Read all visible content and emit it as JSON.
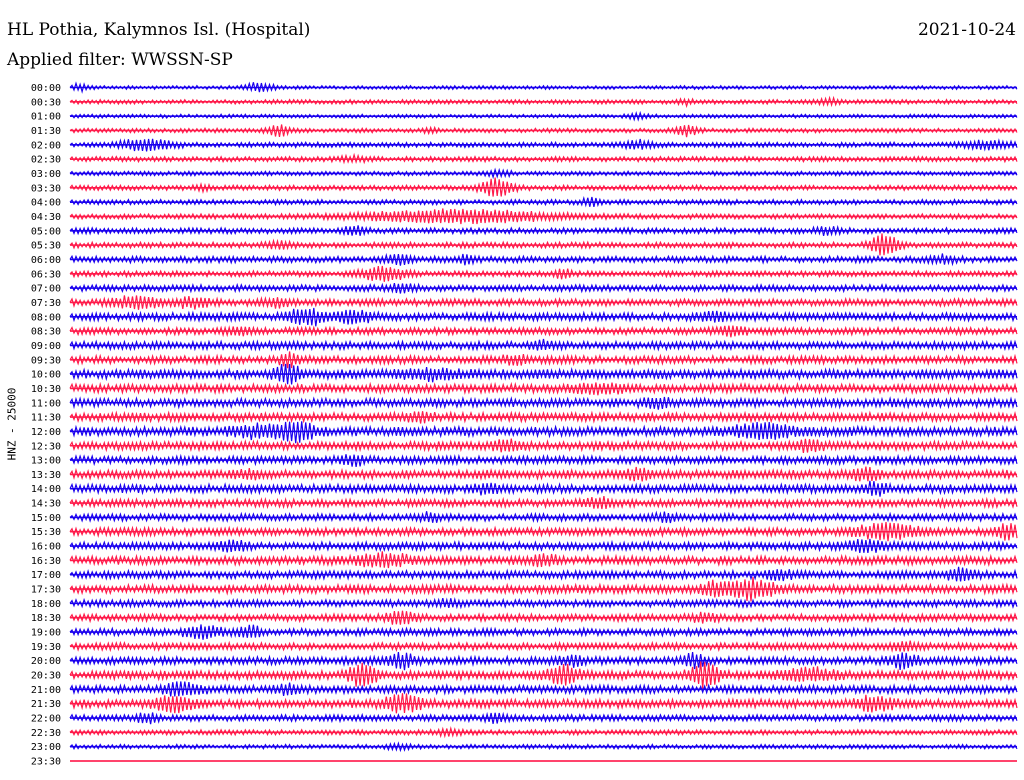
{
  "header": {
    "station": "HL Pothia, Kalymnos Isl. (Hospital)",
    "date": "2021-10-24",
    "filter": "Applied filter: WWSSN-SP"
  },
  "side_label": "HNZ - 25000",
  "colors": {
    "trace_even": "#1a00ee",
    "trace_odd": "#ff1a4a"
  },
  "chart_data": {
    "type": "line",
    "title": "HL Pothia, Kalymnos Isl. (Hospital)",
    "ylabel": "HNZ - 25000",
    "xlabel": "",
    "grid": false,
    "rows": [
      {
        "label": "00:00",
        "noise": 0.5,
        "events": [
          [
            0.2,
            1.3,
            0.01
          ],
          [
            0.01,
            0.8,
            0.01
          ]
        ]
      },
      {
        "label": "00:30",
        "noise": 0.6,
        "events": [
          [
            0.8,
            0.9,
            0.008
          ],
          [
            0.65,
            0.7,
            0.006
          ]
        ]
      },
      {
        "label": "01:00",
        "noise": 0.5,
        "events": [
          [
            0.6,
            0.7,
            0.008
          ]
        ]
      },
      {
        "label": "01:30",
        "noise": 0.6,
        "events": [
          [
            0.22,
            1.6,
            0.008
          ],
          [
            0.65,
            1.5,
            0.009
          ],
          [
            0.38,
            0.6,
            0.006
          ]
        ]
      },
      {
        "label": "02:00",
        "noise": 0.7,
        "events": [
          [
            0.08,
            1.4,
            0.02
          ],
          [
            0.6,
            1.2,
            0.01
          ],
          [
            0.97,
            1.0,
            0.02
          ]
        ]
      },
      {
        "label": "02:30",
        "noise": 0.7,
        "events": [
          [
            0.3,
            0.6,
            0.01
          ]
        ]
      },
      {
        "label": "03:00",
        "noise": 0.6,
        "events": [
          [
            0.45,
            0.7,
            0.01
          ]
        ]
      },
      {
        "label": "03:30",
        "noise": 0.7,
        "events": [
          [
            0.45,
            2.5,
            0.012
          ],
          [
            0.14,
            0.8,
            0.006
          ]
        ]
      },
      {
        "label": "04:00",
        "noise": 0.7,
        "events": [
          [
            0.55,
            1.0,
            0.008
          ]
        ]
      },
      {
        "label": "04:30",
        "noise": 0.7,
        "events": [
          [
            0.41,
            1.8,
            0.07
          ]
        ]
      },
      {
        "label": "05:00",
        "noise": 0.8,
        "events": [
          [
            0.3,
            0.9,
            0.01
          ],
          [
            0.8,
            0.8,
            0.01
          ]
        ]
      },
      {
        "label": "05:30",
        "noise": 0.8,
        "events": [
          [
            0.86,
            3.0,
            0.01
          ],
          [
            0.22,
            0.8,
            0.01
          ]
        ]
      },
      {
        "label": "06:00",
        "noise": 0.9,
        "events": [
          [
            0.35,
            1.3,
            0.01
          ],
          [
            0.42,
            1.5,
            0.006
          ],
          [
            0.92,
            0.8,
            0.01
          ]
        ]
      },
      {
        "label": "06:30",
        "noise": 0.8,
        "events": [
          [
            0.33,
            2.0,
            0.016
          ],
          [
            0.52,
            1.2,
            0.006
          ]
        ]
      },
      {
        "label": "07:00",
        "noise": 0.9,
        "events": [
          [
            0.35,
            0.9,
            0.01
          ]
        ]
      },
      {
        "label": "07:30",
        "noise": 1.0,
        "events": [
          [
            0.07,
            1.5,
            0.016
          ],
          [
            0.13,
            1.4,
            0.012
          ],
          [
            0.22,
            1.1,
            0.01
          ]
        ]
      },
      {
        "label": "08:00",
        "noise": 1.1,
        "events": [
          [
            0.25,
            2.2,
            0.014
          ],
          [
            0.3,
            1.8,
            0.012
          ],
          [
            0.68,
            1.0,
            0.01
          ]
        ]
      },
      {
        "label": "08:30",
        "noise": 1.0,
        "events": [
          [
            0.7,
            1.0,
            0.01
          ],
          [
            0.18,
            0.9,
            0.01
          ]
        ]
      },
      {
        "label": "09:00",
        "noise": 1.1,
        "events": [
          [
            0.5,
            0.8,
            0.01
          ]
        ]
      },
      {
        "label": "09:30",
        "noise": 1.1,
        "events": [
          [
            0.23,
            1.8,
            0.006
          ],
          [
            0.47,
            0.9,
            0.01
          ]
        ]
      },
      {
        "label": "10:00",
        "noise": 1.3,
        "events": [
          [
            0.23,
            2.3,
            0.01
          ],
          [
            0.38,
            1.2,
            0.02
          ]
        ]
      },
      {
        "label": "10:30",
        "noise": 1.2,
        "events": [
          [
            0.56,
            0.9,
            0.02
          ]
        ]
      },
      {
        "label": "11:00",
        "noise": 1.2,
        "events": [
          [
            0.62,
            1.2,
            0.01
          ]
        ]
      },
      {
        "label": "11:30",
        "noise": 1.2,
        "events": [
          [
            0.37,
            1.0,
            0.01
          ]
        ]
      },
      {
        "label": "12:00",
        "noise": 1.3,
        "events": [
          [
            0.24,
            2.5,
            0.012
          ],
          [
            0.73,
            2.0,
            0.02
          ],
          [
            0.2,
            1.4,
            0.02
          ]
        ]
      },
      {
        "label": "12:30",
        "noise": 1.2,
        "events": [
          [
            0.78,
            1.3,
            0.01
          ],
          [
            0.46,
            1.2,
            0.01
          ]
        ]
      },
      {
        "label": "13:00",
        "noise": 1.1,
        "events": [
          [
            0.3,
            0.9,
            0.01
          ]
        ]
      },
      {
        "label": "13:30",
        "noise": 1.2,
        "events": [
          [
            0.6,
            1.4,
            0.01
          ],
          [
            0.84,
            1.5,
            0.01
          ],
          [
            0.19,
            1.1,
            0.008
          ]
        ]
      },
      {
        "label": "14:00",
        "noise": 1.2,
        "events": [
          [
            0.85,
            1.6,
            0.008
          ],
          [
            0.44,
            1.0,
            0.01
          ]
        ]
      },
      {
        "label": "14:30",
        "noise": 1.1,
        "events": [
          [
            0.56,
            1.2,
            0.01
          ]
        ]
      },
      {
        "label": "15:00",
        "noise": 1.0,
        "events": [
          [
            0.38,
            1.0,
            0.008
          ],
          [
            0.63,
            1.0,
            0.008
          ]
        ]
      },
      {
        "label": "15:30",
        "noise": 1.1,
        "events": [
          [
            0.86,
            2.2,
            0.022
          ],
          [
            0.99,
            1.8,
            0.01
          ]
        ]
      },
      {
        "label": "16:00",
        "noise": 1.1,
        "events": [
          [
            0.17,
            1.2,
            0.01
          ],
          [
            0.84,
            1.3,
            0.014
          ]
        ]
      },
      {
        "label": "16:30",
        "noise": 1.2,
        "events": [
          [
            0.33,
            1.6,
            0.02
          ],
          [
            0.5,
            1.0,
            0.012
          ]
        ]
      },
      {
        "label": "17:00",
        "noise": 1.1,
        "events": [
          [
            0.94,
            1.4,
            0.01
          ],
          [
            0.75,
            1.0,
            0.01
          ]
        ]
      },
      {
        "label": "17:30",
        "noise": 1.2,
        "events": [
          [
            0.72,
            2.6,
            0.016
          ],
          [
            0.68,
            1.6,
            0.01
          ]
        ]
      },
      {
        "label": "18:00",
        "noise": 1.0,
        "events": [
          [
            0.4,
            0.8,
            0.01
          ]
        ]
      },
      {
        "label": "18:30",
        "noise": 1.0,
        "events": [
          [
            0.35,
            1.6,
            0.01
          ],
          [
            0.67,
            1.0,
            0.01
          ]
        ]
      },
      {
        "label": "19:00",
        "noise": 1.0,
        "events": [
          [
            0.14,
            1.5,
            0.014
          ],
          [
            0.19,
            1.6,
            0.008
          ]
        ]
      },
      {
        "label": "19:30",
        "noise": 1.0,
        "events": [
          [
            0.88,
            1.0,
            0.01
          ]
        ]
      },
      {
        "label": "20:00",
        "noise": 1.1,
        "events": [
          [
            0.35,
            2.0,
            0.01
          ],
          [
            0.66,
            1.8,
            0.008
          ],
          [
            0.88,
            1.8,
            0.01
          ],
          [
            0.53,
            1.4,
            0.008
          ]
        ]
      },
      {
        "label": "20:30",
        "noise": 1.2,
        "events": [
          [
            0.31,
            3.2,
            0.01
          ],
          [
            0.52,
            2.6,
            0.012
          ],
          [
            0.67,
            3.5,
            0.01
          ],
          [
            0.78,
            1.5,
            0.02
          ]
        ]
      },
      {
        "label": "21:00",
        "noise": 1.1,
        "events": [
          [
            0.12,
            2.0,
            0.014
          ],
          [
            0.23,
            1.0,
            0.01
          ]
        ]
      },
      {
        "label": "21:30",
        "noise": 1.2,
        "events": [
          [
            0.11,
            1.8,
            0.016
          ],
          [
            0.35,
            2.2,
            0.014
          ],
          [
            0.85,
            1.8,
            0.014
          ]
        ]
      },
      {
        "label": "22:00",
        "noise": 0.9,
        "events": [
          [
            0.08,
            1.2,
            0.008
          ],
          [
            0.45,
            0.9,
            0.01
          ]
        ]
      },
      {
        "label": "22:30",
        "noise": 0.7,
        "events": [
          [
            0.4,
            0.8,
            0.01
          ]
        ]
      },
      {
        "label": "23:00",
        "noise": 0.6,
        "events": [
          [
            0.35,
            0.7,
            0.01
          ]
        ]
      },
      {
        "label": "23:30",
        "noise": 0.0,
        "events": []
      }
    ]
  }
}
